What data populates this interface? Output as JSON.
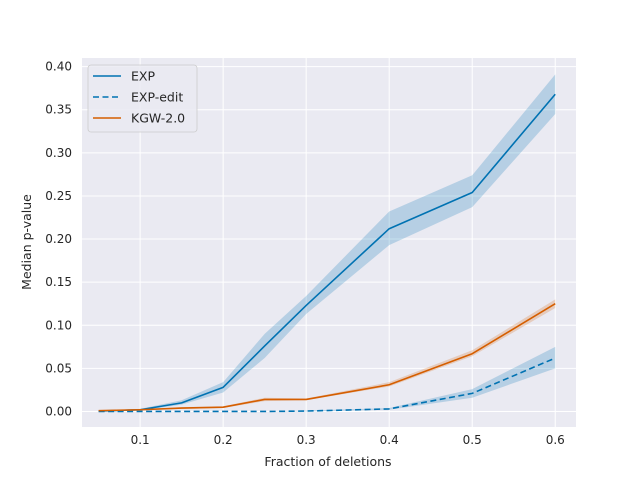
{
  "chart_data": {
    "type": "line",
    "title": "",
    "xlabel": "Fraction of deletions",
    "ylabel": "Median p-value",
    "xlim": [
      0.03,
      0.625
    ],
    "ylim": [
      -0.018,
      0.41
    ],
    "xticks": [
      0.1,
      0.2,
      0.3,
      0.4,
      0.5,
      0.6
    ],
    "xtick_labels": [
      "0.1",
      "0.2",
      "0.3",
      "0.4",
      "0.5",
      "0.6"
    ],
    "yticks": [
      0.0,
      0.05,
      0.1,
      0.15,
      0.2,
      0.25,
      0.3,
      0.35,
      0.4
    ],
    "ytick_labels": [
      "0.00",
      "0.05",
      "0.10",
      "0.15",
      "0.20",
      "0.25",
      "0.30",
      "0.35",
      "0.40"
    ],
    "grid": true,
    "legend_position": "top-left",
    "x": [
      0.05,
      0.1,
      0.15,
      0.2,
      0.25,
      0.3,
      0.4,
      0.5,
      0.6
    ],
    "series": [
      {
        "name": "EXP",
        "color": "#0072b2",
        "dash": "solid",
        "values": [
          0.0005,
          0.002,
          0.01,
          0.028,
          0.076,
          0.123,
          0.212,
          0.254,
          0.368
        ],
        "lower": [
          0.0,
          0.001,
          0.008,
          0.022,
          0.062,
          0.113,
          0.193,
          0.237,
          0.345
        ],
        "upper": [
          0.001,
          0.003,
          0.013,
          0.034,
          0.09,
          0.134,
          0.232,
          0.274,
          0.391
        ]
      },
      {
        "name": "EXP-edit",
        "color": "#0072b2",
        "dash": "dashed",
        "values": [
          0.0,
          0.0,
          0.0,
          0.0,
          0.0,
          0.0005,
          0.003,
          0.021,
          0.062
        ],
        "lower": [
          0.0,
          0.0,
          0.0,
          0.0,
          0.0,
          0.0,
          0.002,
          0.016,
          0.05
        ],
        "upper": [
          0.0,
          0.0,
          0.0,
          0.0,
          0.0,
          0.001,
          0.004,
          0.026,
          0.075
        ]
      },
      {
        "name": "KGW-2.0",
        "color": "#d55e00",
        "dash": "solid",
        "values": [
          0.001,
          0.002,
          0.004,
          0.005,
          0.014,
          0.014,
          0.031,
          0.067,
          0.125
        ],
        "lower": [
          0.0005,
          0.0015,
          0.003,
          0.004,
          0.012,
          0.013,
          0.029,
          0.064,
          0.12
        ],
        "upper": [
          0.0015,
          0.0025,
          0.005,
          0.006,
          0.016,
          0.015,
          0.034,
          0.071,
          0.13
        ]
      }
    ]
  }
}
